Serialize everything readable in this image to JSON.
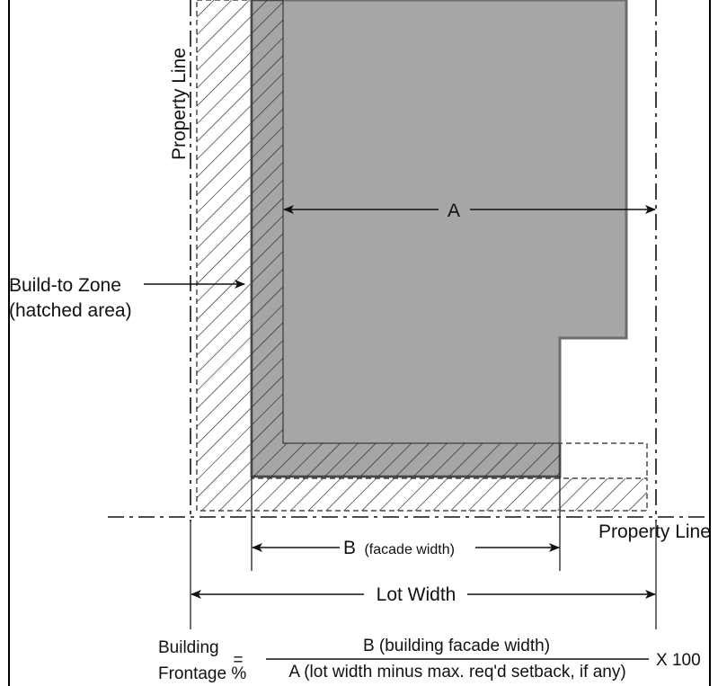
{
  "labels": {
    "property_line_vertical": "Property Line",
    "property_line_horizontal": "Property Line",
    "build_to_zone_line1": "Build-to Zone",
    "build_to_zone_line2": "(hatched area)",
    "dim_a": "A",
    "dim_b_letter": "B",
    "dim_b_note": "(facade width)",
    "dim_lot_width": "Lot Width"
  },
  "formula": {
    "lhs_line1": "Building",
    "lhs_line2": "Frontage %",
    "equals": "=",
    "numerator": "B (building facade width)",
    "denominator": "A (lot width minus max. req'd setback, if any)",
    "multiplier": "X 100"
  },
  "colors": {
    "building_fill": "#a6a6a6",
    "building_stroke": "#6e6e6e",
    "line": "#111111",
    "frame": "#000000"
  }
}
